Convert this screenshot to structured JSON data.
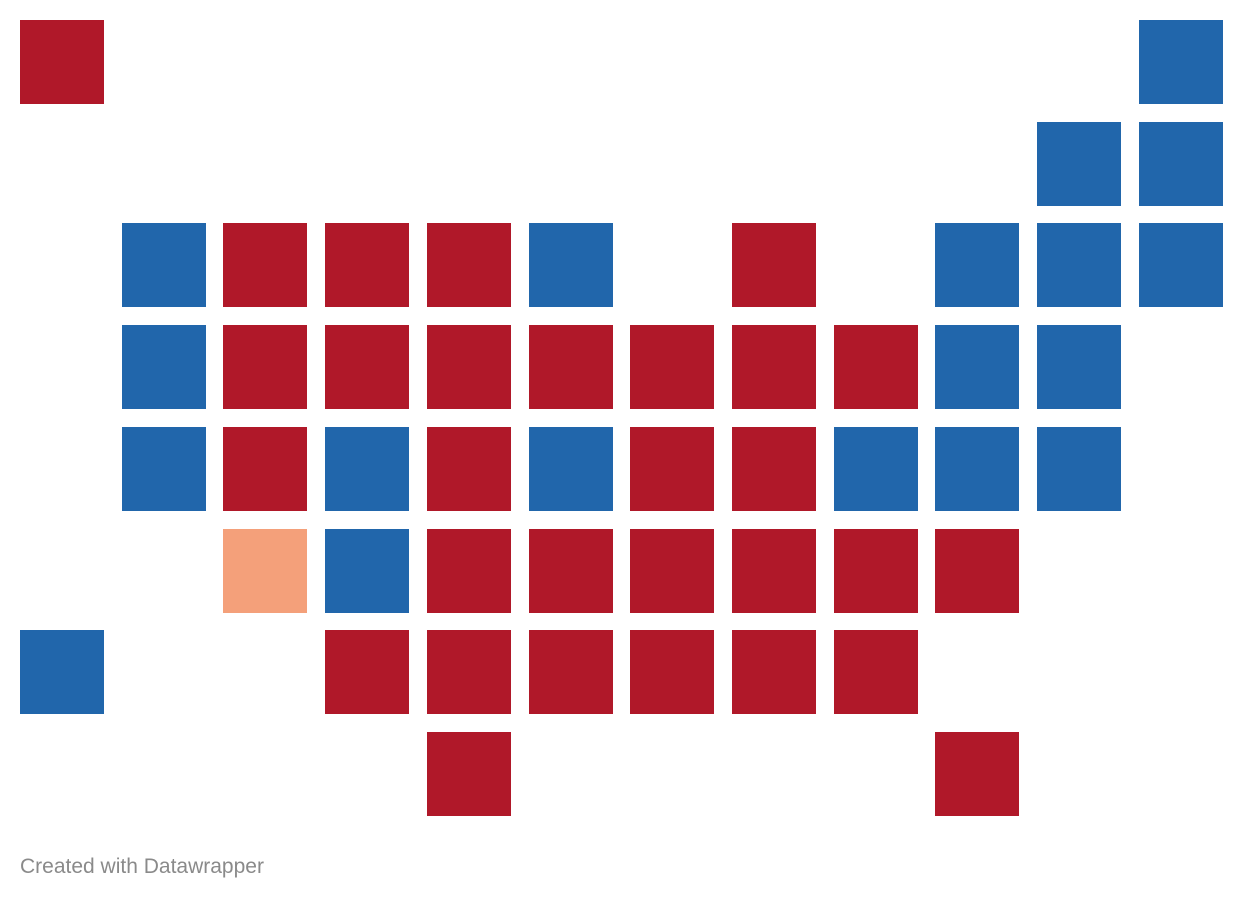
{
  "map": {
    "colors": {
      "red": "#b01829",
      "blue": "#2166ab",
      "orange": "#f4a07a"
    },
    "tiles": [
      {
        "row": 0,
        "col": 0,
        "party": "red"
      },
      {
        "row": 0,
        "col": 11,
        "party": "blue"
      },
      {
        "row": 1,
        "col": 10,
        "party": "blue"
      },
      {
        "row": 1,
        "col": 11,
        "party": "blue"
      },
      {
        "row": 2,
        "col": 1,
        "party": "blue"
      },
      {
        "row": 2,
        "col": 2,
        "party": "red"
      },
      {
        "row": 2,
        "col": 3,
        "party": "red"
      },
      {
        "row": 2,
        "col": 4,
        "party": "red"
      },
      {
        "row": 2,
        "col": 5,
        "party": "blue"
      },
      {
        "row": 2,
        "col": 7,
        "party": "red"
      },
      {
        "row": 2,
        "col": 9,
        "party": "blue"
      },
      {
        "row": 2,
        "col": 10,
        "party": "blue"
      },
      {
        "row": 2,
        "col": 11,
        "party": "blue"
      },
      {
        "row": 3,
        "col": 1,
        "party": "blue"
      },
      {
        "row": 3,
        "col": 2,
        "party": "red"
      },
      {
        "row": 3,
        "col": 3,
        "party": "red"
      },
      {
        "row": 3,
        "col": 4,
        "party": "red"
      },
      {
        "row": 3,
        "col": 5,
        "party": "red"
      },
      {
        "row": 3,
        "col": 6,
        "party": "red"
      },
      {
        "row": 3,
        "col": 7,
        "party": "red"
      },
      {
        "row": 3,
        "col": 8,
        "party": "red"
      },
      {
        "row": 3,
        "col": 9,
        "party": "blue"
      },
      {
        "row": 3,
        "col": 10,
        "party": "blue"
      },
      {
        "row": 4,
        "col": 1,
        "party": "blue"
      },
      {
        "row": 4,
        "col": 2,
        "party": "red"
      },
      {
        "row": 4,
        "col": 3,
        "party": "blue"
      },
      {
        "row": 4,
        "col": 4,
        "party": "red"
      },
      {
        "row": 4,
        "col": 5,
        "party": "blue"
      },
      {
        "row": 4,
        "col": 6,
        "party": "red"
      },
      {
        "row": 4,
        "col": 7,
        "party": "red"
      },
      {
        "row": 4,
        "col": 8,
        "party": "blue"
      },
      {
        "row": 4,
        "col": 9,
        "party": "blue"
      },
      {
        "row": 4,
        "col": 10,
        "party": "blue"
      },
      {
        "row": 5,
        "col": 2,
        "party": "orange"
      },
      {
        "row": 5,
        "col": 3,
        "party": "blue"
      },
      {
        "row": 5,
        "col": 4,
        "party": "red"
      },
      {
        "row": 5,
        "col": 5,
        "party": "red"
      },
      {
        "row": 5,
        "col": 6,
        "party": "red"
      },
      {
        "row": 5,
        "col": 7,
        "party": "red"
      },
      {
        "row": 5,
        "col": 8,
        "party": "red"
      },
      {
        "row": 5,
        "col": 9,
        "party": "red"
      },
      {
        "row": 6,
        "col": 0,
        "party": "blue"
      },
      {
        "row": 6,
        "col": 3,
        "party": "red"
      },
      {
        "row": 6,
        "col": 4,
        "party": "red"
      },
      {
        "row": 6,
        "col": 5,
        "party": "red"
      },
      {
        "row": 6,
        "col": 6,
        "party": "red"
      },
      {
        "row": 6,
        "col": 7,
        "party": "red"
      },
      {
        "row": 6,
        "col": 8,
        "party": "red"
      },
      {
        "row": 7,
        "col": 4,
        "party": "red"
      },
      {
        "row": 7,
        "col": 9,
        "party": "red"
      }
    ]
  },
  "footer": {
    "credit": "Created with Datawrapper"
  }
}
